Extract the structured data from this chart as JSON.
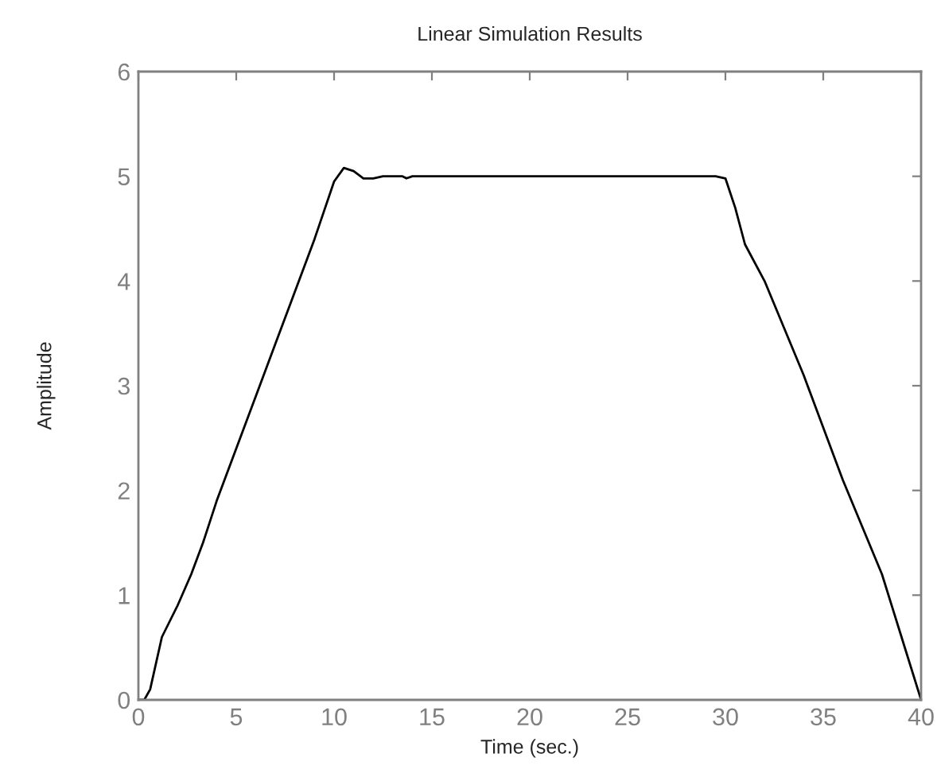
{
  "chart_data": {
    "type": "line",
    "title": "Linear Simulation Results",
    "xlabel": "Time (sec.)",
    "ylabel": "Amplitude",
    "x": [
      0,
      0.3,
      0.6,
      1.2,
      2,
      2.7,
      3.3,
      4,
      5,
      6,
      7,
      7.8,
      9,
      10,
      10.5,
      11,
      11.5,
      12,
      12.5,
      13.5,
      13.7,
      14,
      29.5,
      30,
      30.5,
      31,
      32,
      34,
      36,
      38,
      39,
      40
    ],
    "series": [
      {
        "color": "#000000",
        "values": [
          0,
          0,
          0.1,
          0.6,
          0.9,
          1.2,
          1.5,
          1.9,
          2.4,
          2.9,
          3.4,
          3.8,
          4.4,
          4.95,
          5.08,
          5.05,
          4.98,
          4.98,
          5.0,
          5.0,
          4.98,
          5.0,
          5.0,
          4.98,
          4.7,
          4.35,
          4.0,
          3.1,
          2.1,
          1.2,
          0.6,
          0
        ]
      }
    ],
    "xlim": [
      0,
      40
    ],
    "xticks": [
      0,
      5,
      10,
      15,
      20,
      25,
      30,
      35,
      40
    ],
    "ylim": [
      0,
      6
    ],
    "yticks": [
      0,
      1,
      2,
      3,
      4,
      5,
      6
    ],
    "grid": false,
    "marker": "none",
    "line_style": "solid"
  }
}
